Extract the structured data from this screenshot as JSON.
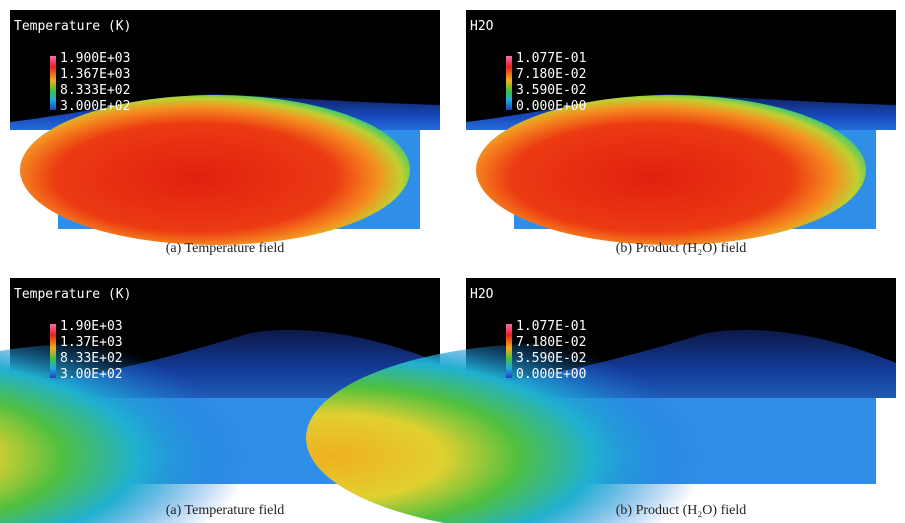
{
  "panels": [
    {
      "title": "Temperature (K)",
      "ticks": [
        "1.900E+03",
        "1.367E+03",
        "8.333E+02",
        "3.000E+02"
      ],
      "caption": "(a) Temperature field"
    },
    {
      "title": "H2O",
      "ticks": [
        "1.077E-01",
        "7.180E-02",
        "3.590E-02",
        "0.000E+00"
      ],
      "caption": "(b) Product (H₂O) field"
    },
    {
      "title": "Temperature (K)",
      "ticks": [
        "1.90E+03",
        "1.37E+03",
        "8.33E+02",
        "3.00E+02"
      ],
      "caption": "(a) Temperature field"
    },
    {
      "title": "H2O",
      "ticks": [
        "1.077E-01",
        "7.180E-02",
        "3.590E-02",
        "0.000E+00"
      ],
      "caption": "(b) Product (H₂O) field"
    }
  ]
}
